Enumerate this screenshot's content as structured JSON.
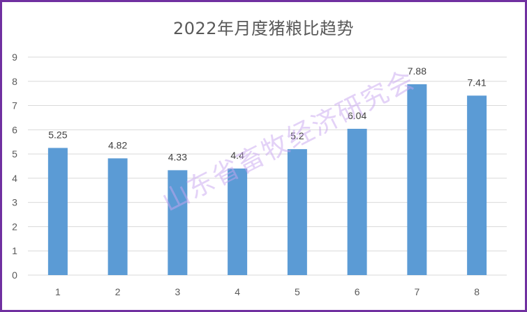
{
  "chart_data": {
    "type": "bar",
    "title": "2022年月度猪粮比趋势",
    "categories": [
      "1",
      "2",
      "3",
      "4",
      "5",
      "6",
      "7",
      "8"
    ],
    "values": [
      5.25,
      4.82,
      4.33,
      4.4,
      5.2,
      6.04,
      7.88,
      7.41
    ],
    "value_labels": [
      "5.25",
      "4.82",
      "4.33",
      "4.4",
      "5.2",
      "6.04",
      "7.88",
      "7.41"
    ],
    "xlabel": "",
    "ylabel": "",
    "ylim": [
      0,
      9
    ],
    "yticks": [
      "0",
      "1",
      "2",
      "3",
      "4",
      "5",
      "6",
      "7",
      "8",
      "9"
    ],
    "grid": true,
    "legend": "none",
    "bar_color": "#5b9bd5",
    "grid_color": "#d9d9d9",
    "text_color": "#595959"
  },
  "watermark": {
    "text": "山东省畜牧经济研究会",
    "color": "#c9a6f0"
  },
  "frame": {
    "border_color": "#7030a0"
  }
}
